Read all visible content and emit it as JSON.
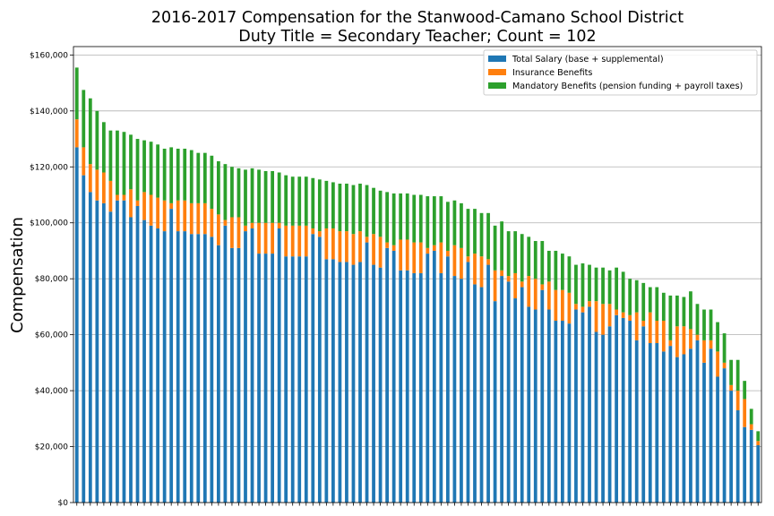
{
  "chart_data": {
    "type": "bar",
    "stacked": true,
    "title": "2016-2017 Compensation for the Stanwood-Camano School District",
    "subtitle": "Duty Title = Secondary Teacher; Count = 102",
    "ylabel": "Compensation",
    "xlabel": "",
    "ylim": [
      0,
      163000
    ],
    "yticks": [
      0,
      20000,
      40000,
      60000,
      80000,
      100000,
      120000,
      140000,
      160000
    ],
    "ytick_labels": [
      "$0",
      "$20,000",
      "$40,000",
      "$60,000",
      "$80,000",
      "$100,000",
      "$120,000",
      "$140,000",
      "$160,000"
    ],
    "grid": "horizontal",
    "legend_position": "top-right",
    "series": [
      {
        "name": "Total Salary (base + supplemental)",
        "color": "#1f77b4",
        "values": [
          127000,
          117000,
          111000,
          108000,
          107000,
          104000,
          108000,
          108000,
          102000,
          106000,
          101000,
          99000,
          98000,
          97000,
          105000,
          97000,
          97000,
          96000,
          96000,
          96000,
          95000,
          92000,
          99000,
          91000,
          91000,
          97000,
          98000,
          89000,
          89000,
          89000,
          98000,
          88000,
          88000,
          88000,
          88000,
          96000,
          95000,
          87000,
          87000,
          86000,
          86000,
          85000,
          86000,
          93000,
          85000,
          84000,
          91000,
          90000,
          83000,
          83000,
          82000,
          82000,
          89000,
          90000,
          82000,
          88000,
          81000,
          80000,
          86000,
          78000,
          77000,
          85000,
          72000,
          81000,
          79000,
          73000,
          77000,
          70000,
          69000,
          76000,
          69000,
          65000,
          65000,
          64000,
          69000,
          68000,
          70000,
          61000,
          60000,
          63000,
          67000,
          66000,
          65000,
          58000,
          63000,
          57000,
          57000,
          54000,
          56000,
          52000,
          53000,
          55000,
          58000,
          50000,
          55000,
          45000,
          48000,
          40000,
          33000,
          27000,
          26000,
          20500
        ]
      },
      {
        "name": "Insurance Benefits",
        "color": "#ff7f0e",
        "values": [
          10000,
          10000,
          10000,
          11000,
          11000,
          11000,
          2000,
          2000,
          10000,
          2000,
          10000,
          11000,
          11000,
          11000,
          2000,
          11000,
          11000,
          11000,
          11000,
          11000,
          10000,
          11000,
          2000,
          11000,
          11000,
          2000,
          2000,
          11000,
          11000,
          11000,
          2000,
          11000,
          11000,
          11000,
          11000,
          2000,
          2000,
          11000,
          11000,
          11000,
          11000,
          11000,
          11000,
          2000,
          11000,
          11000,
          2000,
          2000,
          11000,
          11000,
          11000,
          11000,
          2000,
          2000,
          11000,
          2000,
          11000,
          11000,
          2000,
          11000,
          11000,
          2000,
          11000,
          2000,
          2000,
          9000,
          2000,
          11000,
          11000,
          2000,
          10000,
          11000,
          11000,
          11000,
          2000,
          2000,
          2000,
          11000,
          11000,
          8000,
          2000,
          2000,
          2000,
          10000,
          2000,
          11000,
          8000,
          11000,
          2000,
          11000,
          10000,
          7000,
          2000,
          8000,
          3000,
          9000,
          2000,
          2000,
          7000,
          10000,
          2000,
          1500
        ]
      },
      {
        "name": "Mandatory Benefits (pension funding + payroll taxes)",
        "color": "#2ca02c",
        "values": [
          18500,
          20500,
          23500,
          21000,
          18000,
          18000,
          23000,
          22500,
          19500,
          22000,
          18500,
          19000,
          19000,
          18500,
          20000,
          18500,
          18500,
          19000,
          18000,
          18000,
          19000,
          19000,
          20000,
          18000,
          17500,
          20000,
          19500,
          19000,
          18500,
          18500,
          18000,
          18000,
          17500,
          17500,
          17500,
          18000,
          18500,
          17000,
          16500,
          17000,
          17000,
          17500,
          17000,
          18500,
          16500,
          16500,
          18000,
          18500,
          16500,
          16500,
          17000,
          17000,
          18500,
          17500,
          16500,
          17500,
          16000,
          16000,
          17000,
          16000,
          15500,
          16500,
          16000,
          17500,
          16000,
          15000,
          17000,
          14000,
          13500,
          15500,
          11000,
          14000,
          13000,
          13000,
          14000,
          15500,
          13000,
          12000,
          13000,
          12000,
          15000,
          14500,
          13000,
          11500,
          13500,
          9000,
          12000,
          10000,
          16000,
          11000,
          10500,
          13500,
          11000,
          11000,
          11000,
          10500,
          10500,
          9000,
          11000,
          6500,
          5500,
          3500
        ]
      }
    ]
  }
}
